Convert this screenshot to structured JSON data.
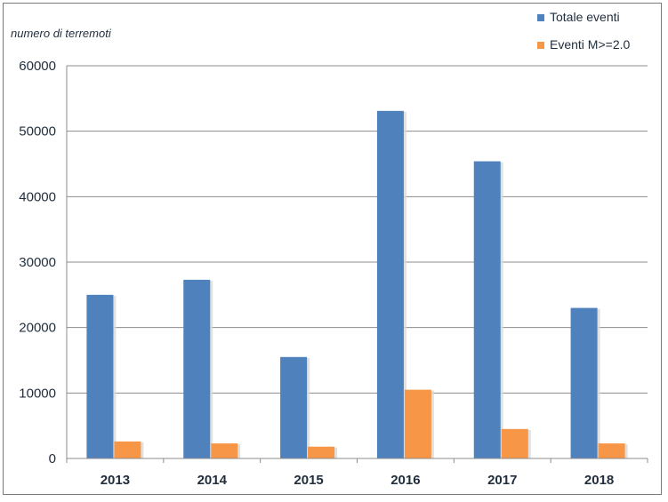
{
  "chart_data": {
    "type": "bar",
    "title": "",
    "xlabel": "",
    "ylabel": "numero di terremoti",
    "ylim": [
      0,
      60000
    ],
    "yticks": [
      0,
      10000,
      20000,
      30000,
      40000,
      50000,
      60000
    ],
    "grid": true,
    "legend_position": "top-right",
    "categories": [
      "2013",
      "2014",
      "2015",
      "2016",
      "2017",
      "2018"
    ],
    "series": [
      {
        "name": "Totale eventi",
        "color": "#4f81bd",
        "values": [
          25000,
          27300,
          15500,
          53100,
          45400,
          23000
        ]
      },
      {
        "name": "Eventi M>=2.0",
        "color": "#f79646",
        "values": [
          2600,
          2300,
          1800,
          10500,
          4500,
          2300
        ]
      }
    ]
  }
}
